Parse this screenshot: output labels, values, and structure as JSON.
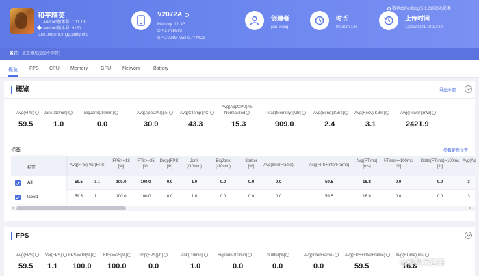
{
  "header": {
    "app": {
      "name": "和平精英",
      "android_version_label": "Android版本号:",
      "android_version": "1.11.13",
      "android_build_label": "Android版本号:",
      "android_build": "9150",
      "package": "com.tencent.tmgp.pubgmhd"
    },
    "device": {
      "model": "V2072A",
      "memory": "Memory: 11.3G",
      "cpu": "CPU: mt6893",
      "gpu": "GPU: ARM Mali-G77 MC9"
    },
    "creator": {
      "title": "创建者",
      "value": "jian wang"
    },
    "duration": {
      "title": "时长",
      "value": "0h 30m 14s"
    },
    "upload": {
      "title": "上传时间",
      "value": "12/03/2021 10:17:30"
    },
    "perfdog": "数据由PerfDog(5.1.210204)采集"
  },
  "note": {
    "label": "备注:",
    "text": "点击添加(200个字符)"
  },
  "tabs": [
    "概览",
    "FPS",
    "CPU",
    "Memory",
    "GPU",
    "Network",
    "Battery"
  ],
  "overview": {
    "title": "概览",
    "export_link": "导出全部",
    "metrics": [
      {
        "label": "Avg(FPS)",
        "value": "59.5"
      },
      {
        "label": "Jank(/10min)",
        "value": "1.0"
      },
      {
        "label": "BigJank(/10min)",
        "value": "0.0"
      },
      {
        "label": "Avg(AppCPU)[%]",
        "value": "30.9"
      },
      {
        "label": "Avg(CTemp)[°C]",
        "value": "43.3"
      },
      {
        "label": "Avg(AppCPU)[%]",
        "label2": "Normalized",
        "value": "15.3"
      },
      {
        "label": "Peak(Memory)[MB]",
        "value": "909.0"
      },
      {
        "label": "Avg(Send)[KB/s]",
        "value": "2.4"
      },
      {
        "label": "Avg(Recv)[KB/s]",
        "value": "3.1"
      },
      {
        "label": "Avg(Power)[mW]",
        "value": "2421.9"
      }
    ]
  },
  "labels": {
    "title": "标签",
    "link": "参数更新设置",
    "col0": "标签",
    "columns": [
      [
        "Avg(FPS)"
      ],
      [
        "Var(FPS)"
      ],
      [
        "FPS>=18",
        "[%]"
      ],
      [
        "FPS>=25",
        "[%]"
      ],
      [
        "Drop(FPS)",
        "[/h]"
      ],
      [
        "Jank",
        "(/10min)"
      ],
      [
        "BigJank",
        "(/10min)"
      ],
      [
        "Stutter",
        "[%]"
      ],
      [
        "Avg(InterFrame)"
      ],
      [
        "Avg(FPS+InterFrame)"
      ],
      [
        "Avg(FTime)",
        "[ms]"
      ],
      [
        "FTime>=100ms",
        "[%]"
      ],
      [
        "Delta(FTime)>100ms",
        "[/h]"
      ],
      [
        "Avg(Ap"
      ]
    ],
    "rows": [
      {
        "name": "All",
        "cells": [
          "59.5",
          "1.1",
          "100.0",
          "100.0",
          "0.0",
          "1.0",
          "0.0",
          "0.0",
          "0.0",
          "59.5",
          "16.8",
          "0.0",
          "0.0",
          "3"
        ]
      },
      {
        "name": "label1",
        "cells": [
          "59.5",
          "1.1",
          "100.0",
          "100.0",
          "0.0",
          "1.0",
          "0.0",
          "0.0",
          "0.0",
          "59.5",
          "16.8",
          "0.0",
          "0.0",
          "3"
        ]
      }
    ]
  },
  "fps": {
    "title": "FPS",
    "metrics": [
      {
        "label": "Avg(FPS)",
        "value": "59.5"
      },
      {
        "label": "Var(FPS)",
        "value": "1.1"
      },
      {
        "label": "FPS>=18[%]",
        "value": "100.0"
      },
      {
        "label": "FPS>=25[%]",
        "value": "100.0"
      },
      {
        "label": "Drop(FPS)[/h]",
        "value": "0.0"
      },
      {
        "label": "Jank(/10min)",
        "value": "1.0"
      },
      {
        "label": "BigJank(/10min)",
        "value": "0.0"
      },
      {
        "label": "Stutter[%]",
        "value": "0.0"
      },
      {
        "label": "Avg(InterFrame)",
        "value": "0.0"
      },
      {
        "label": "Avg(FPS+InterFrame)",
        "value": "59.5"
      },
      {
        "label": "Avg(FTime)[ms]",
        "value": "16.8"
      }
    ]
  },
  "watermark": "@科技犬建哥",
  "colors": {
    "header": "#6c86ef",
    "accent": "#4a6ee0",
    "background": "#f1f2f6"
  }
}
